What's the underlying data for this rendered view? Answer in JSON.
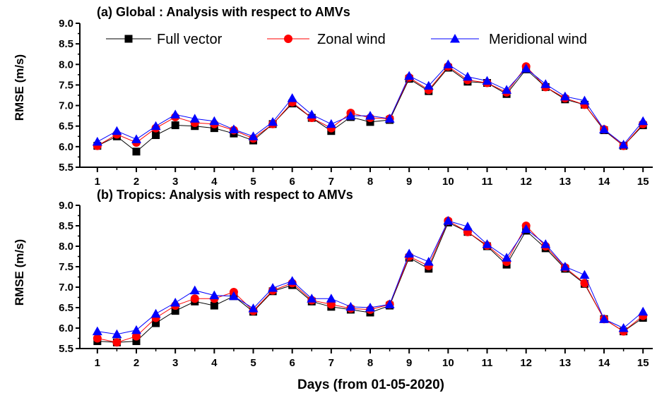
{
  "chart_data": [
    {
      "type": "line",
      "title": "(a) Global : Analysis with respect to AMVs",
      "ylabel": "RMSE (m/s)",
      "xlabel": "",
      "ylim": [
        5.5,
        9.0
      ],
      "yticks": [
        5.5,
        6.0,
        6.5,
        7.0,
        7.5,
        8.0,
        8.5,
        9.0
      ],
      "xlim": [
        0.55,
        15.25
      ],
      "xticks": [
        1,
        2,
        3,
        4,
        5,
        6,
        7,
        8,
        9,
        10,
        11,
        12,
        13,
        14,
        15
      ],
      "legend_position": "top",
      "x": [
        1,
        1.5,
        2,
        2.5,
        3,
        3.5,
        4,
        4.5,
        5,
        5.5,
        6,
        6.5,
        7,
        7.5,
        8,
        8.5,
        9,
        9.5,
        10,
        10.5,
        11,
        11.5,
        12,
        12.5,
        13,
        13.5,
        14,
        14.5,
        15
      ],
      "series": [
        {
          "name": "Full vector",
          "color": "#000000",
          "marker": "square",
          "values": [
            6.02,
            6.25,
            5.88,
            6.28,
            6.52,
            6.5,
            6.45,
            6.32,
            6.15,
            6.55,
            7.05,
            6.7,
            6.38,
            6.72,
            6.6,
            6.65,
            7.65,
            7.35,
            7.92,
            7.58,
            7.55,
            7.28,
            7.88,
            7.45,
            7.15,
            7.02,
            6.4,
            6.02,
            6.52
          ]
        },
        {
          "name": "Zonal wind",
          "color": "#ff0000",
          "marker": "circle",
          "values": [
            6.02,
            6.3,
            6.1,
            6.45,
            6.72,
            6.58,
            6.55,
            6.4,
            6.2,
            6.55,
            7.08,
            6.7,
            6.45,
            6.82,
            6.7,
            6.68,
            7.68,
            7.38,
            7.95,
            7.62,
            7.55,
            7.32,
            7.95,
            7.45,
            7.18,
            7.02,
            6.42,
            6.02,
            6.55
          ]
        },
        {
          "name": "Meridional wind",
          "color": "#0000ff",
          "marker": "triangle",
          "values": [
            6.12,
            6.38,
            6.18,
            6.5,
            6.78,
            6.68,
            6.62,
            6.42,
            6.25,
            6.6,
            7.18,
            6.78,
            6.55,
            6.75,
            6.75,
            6.68,
            7.72,
            7.48,
            8.0,
            7.7,
            7.6,
            7.38,
            7.9,
            7.52,
            7.22,
            7.12,
            6.42,
            6.05,
            6.62
          ]
        }
      ]
    },
    {
      "type": "line",
      "title": "(b) Tropics: Analysis with respect to AMVs",
      "ylabel": "RMSE (m/s)",
      "xlabel": "Days (from 01-05-2020)",
      "ylim": [
        5.5,
        9.0
      ],
      "yticks": [
        5.5,
        6.0,
        6.5,
        7.0,
        7.5,
        8.0,
        8.5,
        9.0
      ],
      "xlim": [
        0.55,
        15.25
      ],
      "xticks": [
        1,
        2,
        3,
        4,
        5,
        6,
        7,
        8,
        9,
        10,
        11,
        12,
        13,
        14,
        15
      ],
      "x": [
        1,
        1.5,
        2,
        2.5,
        3,
        3.5,
        4,
        4.5,
        5,
        5.5,
        6,
        6.5,
        7,
        7.5,
        8,
        8.5,
        9,
        9.5,
        10,
        10.5,
        11,
        11.5,
        12,
        12.5,
        13,
        13.5,
        14,
        14.5,
        15
      ],
      "series": [
        {
          "name": "Full vector",
          "color": "#000000",
          "marker": "square",
          "values": [
            5.68,
            5.65,
            5.68,
            6.12,
            6.42,
            6.65,
            6.55,
            6.78,
            6.4,
            6.9,
            7.05,
            6.65,
            6.52,
            6.45,
            6.38,
            6.55,
            7.72,
            7.45,
            8.58,
            8.35,
            8.0,
            7.55,
            8.38,
            7.95,
            7.45,
            7.08,
            6.22,
            5.92,
            6.25
          ]
        },
        {
          "name": "Zonal wind",
          "color": "#ff0000",
          "marker": "circle",
          "values": [
            5.75,
            5.65,
            5.8,
            6.25,
            6.55,
            6.72,
            6.72,
            6.88,
            6.42,
            6.92,
            7.1,
            6.68,
            6.58,
            6.48,
            6.45,
            6.58,
            7.75,
            7.52,
            8.62,
            8.35,
            8.02,
            7.62,
            8.5,
            8.0,
            7.48,
            7.1,
            6.22,
            5.92,
            6.3
          ]
        },
        {
          "name": "Meridional wind",
          "color": "#0000ff",
          "marker": "triangle",
          "values": [
            5.92,
            5.85,
            5.95,
            6.35,
            6.62,
            6.92,
            6.8,
            6.78,
            6.48,
            6.98,
            7.15,
            6.72,
            6.72,
            6.52,
            6.5,
            6.58,
            7.82,
            7.62,
            8.62,
            8.48,
            8.05,
            7.72,
            8.42,
            8.05,
            7.5,
            7.3,
            6.22,
            6.0,
            6.4
          ]
        }
      ]
    }
  ]
}
